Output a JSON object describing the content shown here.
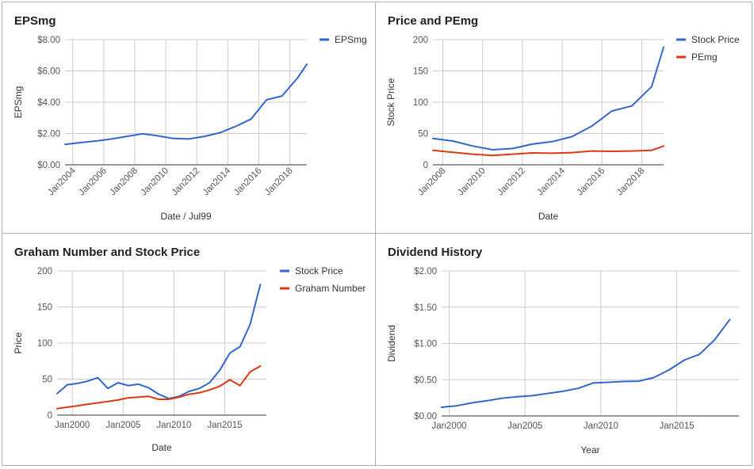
{
  "chart_data": [
    {
      "type": "line",
      "title": "EPSmg",
      "xlabel": "Date / Jul99",
      "ylabel": "EPSmg",
      "y_tick_labels": [
        "$0.00",
        "$2.00",
        "$4.00",
        "$6.00",
        "$8.00"
      ],
      "x_tick_labels": [
        "Jan2004",
        "Jan2006",
        "Jan2008",
        "Jan2010",
        "Jan2012",
        "Jan2014",
        "Jan2016",
        "Jan2018"
      ],
      "ylim": [
        0,
        8
      ],
      "xlim": [
        2003.5,
        2019.1
      ],
      "legend_position": "right",
      "grid": true,
      "series": [
        {
          "name": "EPSmg",
          "color": "#3366cc",
          "x": [
            2003.5,
            2004.5,
            2005.5,
            2006.5,
            2007.5,
            2008.5,
            2009.5,
            2010.5,
            2011.5,
            2012.5,
            2013.5,
            2014.5,
            2015.5,
            2016.5,
            2017.5,
            2018.5,
            2019.1
          ],
          "y": [
            1.3,
            1.42,
            1.52,
            1.65,
            1.82,
            1.98,
            1.85,
            1.68,
            1.65,
            1.82,
            2.05,
            2.45,
            2.92,
            4.15,
            4.4,
            5.55,
            6.42
          ]
        }
      ]
    },
    {
      "type": "line",
      "title": "Price and PEmg",
      "xlabel": "Date",
      "ylabel": "Stock Price",
      "y_tick_labels": [
        "0",
        "50",
        "100",
        "150",
        "200"
      ],
      "x_tick_labels": [
        "Jan2008",
        "Jan2010",
        "Jan2012",
        "Jan2014",
        "Jan2016",
        "Jan2018"
      ],
      "ylim": [
        0,
        200
      ],
      "xlim": [
        2007.5,
        2019.1
      ],
      "legend_position": "right",
      "grid": true,
      "series": [
        {
          "name": "Stock Price",
          "color": "#3366cc",
          "x": [
            2007.5,
            2008.5,
            2009.5,
            2010.5,
            2011.5,
            2012.5,
            2013.5,
            2014.5,
            2015.5,
            2016.5,
            2017.5,
            2018.5,
            2019.1
          ],
          "y": [
            42,
            38,
            30,
            24,
            26,
            33,
            37,
            45,
            62,
            86,
            94,
            125,
            188
          ]
        },
        {
          "name": "PEmg",
          "color": "#dc3912",
          "x": [
            2007.5,
            2008.5,
            2009.5,
            2010.5,
            2011.5,
            2012.5,
            2013.5,
            2014.5,
            2015.5,
            2016.5,
            2017.5,
            2018.5,
            2019.1
          ],
          "y": [
            23,
            20,
            17,
            15,
            17,
            19,
            18.5,
            19.5,
            22,
            21.5,
            22,
            23,
            30
          ]
        }
      ]
    },
    {
      "type": "line",
      "title": "Graham Number and Stock Price",
      "xlabel": "Date",
      "ylabel": "Price",
      "y_tick_labels": [
        "0",
        "50",
        "100",
        "150",
        "200"
      ],
      "x_tick_labels": [
        "Jan2000",
        "Jan2005",
        "Jan2010",
        "Jan2015"
      ],
      "ylim": [
        0,
        200
      ],
      "xlim": [
        1998.5,
        2019.1
      ],
      "legend_position": "right",
      "grid": true,
      "series": [
        {
          "name": "Stock Price",
          "color": "#3366cc",
          "x": [
            1998.5,
            1999.5,
            2000.5,
            2001.5,
            2002.5,
            2003.5,
            2004.5,
            2005.5,
            2006.5,
            2007.5,
            2008.5,
            2009.5,
            2010.5,
            2011.5,
            2012.5,
            2013.5,
            2014.5,
            2015.5,
            2016.5,
            2017.5,
            2018.5
          ],
          "y": [
            30,
            42,
            44,
            47,
            52,
            37,
            45,
            41,
            43,
            38,
            29,
            23,
            26,
            33,
            37,
            45,
            62,
            86,
            95,
            126,
            181
          ]
        },
        {
          "name": "Graham Number",
          "color": "#dc3912",
          "x": [
            1998.5,
            1999.5,
            2000.5,
            2001.5,
            2002.5,
            2003.5,
            2004.5,
            2005.5,
            2006.5,
            2007.5,
            2008.5,
            2009.5,
            2010.5,
            2011.5,
            2012.5,
            2013.5,
            2014.5,
            2015.5,
            2016.5,
            2017.5,
            2018.5
          ],
          "y": [
            9,
            11,
            13,
            15,
            17,
            19,
            21,
            24,
            25,
            26,
            22,
            22,
            25,
            29,
            31,
            35,
            40,
            49,
            41,
            60,
            68
          ]
        }
      ]
    },
    {
      "type": "line",
      "title": "Dividend History",
      "xlabel": "Year",
      "ylabel": "Dividend",
      "y_tick_labels": [
        "$0.00",
        "$0.50",
        "$1.00",
        "$1.50",
        "$2.00"
      ],
      "x_tick_labels": [
        "Jan2000",
        "Jan2005",
        "Jan2010",
        "Jan2015"
      ],
      "ylim": [
        0,
        2
      ],
      "xlim": [
        1999.5,
        2019.1
      ],
      "legend_position": "none",
      "grid": true,
      "series": [
        {
          "name": "",
          "color": "#3366cc",
          "x": [
            1999.5,
            2000.5,
            2001.5,
            2002.5,
            2003.5,
            2004.5,
            2005.5,
            2006.5,
            2007.5,
            2008.5,
            2009.5,
            2010.5,
            2011.5,
            2012.5,
            2013.5,
            2014.5,
            2015.5,
            2016.5,
            2017.5,
            2018.5
          ],
          "y": [
            0.12,
            0.14,
            0.18,
            0.21,
            0.245,
            0.265,
            0.28,
            0.31,
            0.34,
            0.38,
            0.455,
            0.465,
            0.475,
            0.48,
            0.53,
            0.635,
            0.77,
            0.85,
            1.05,
            1.33
          ]
        }
      ]
    }
  ]
}
